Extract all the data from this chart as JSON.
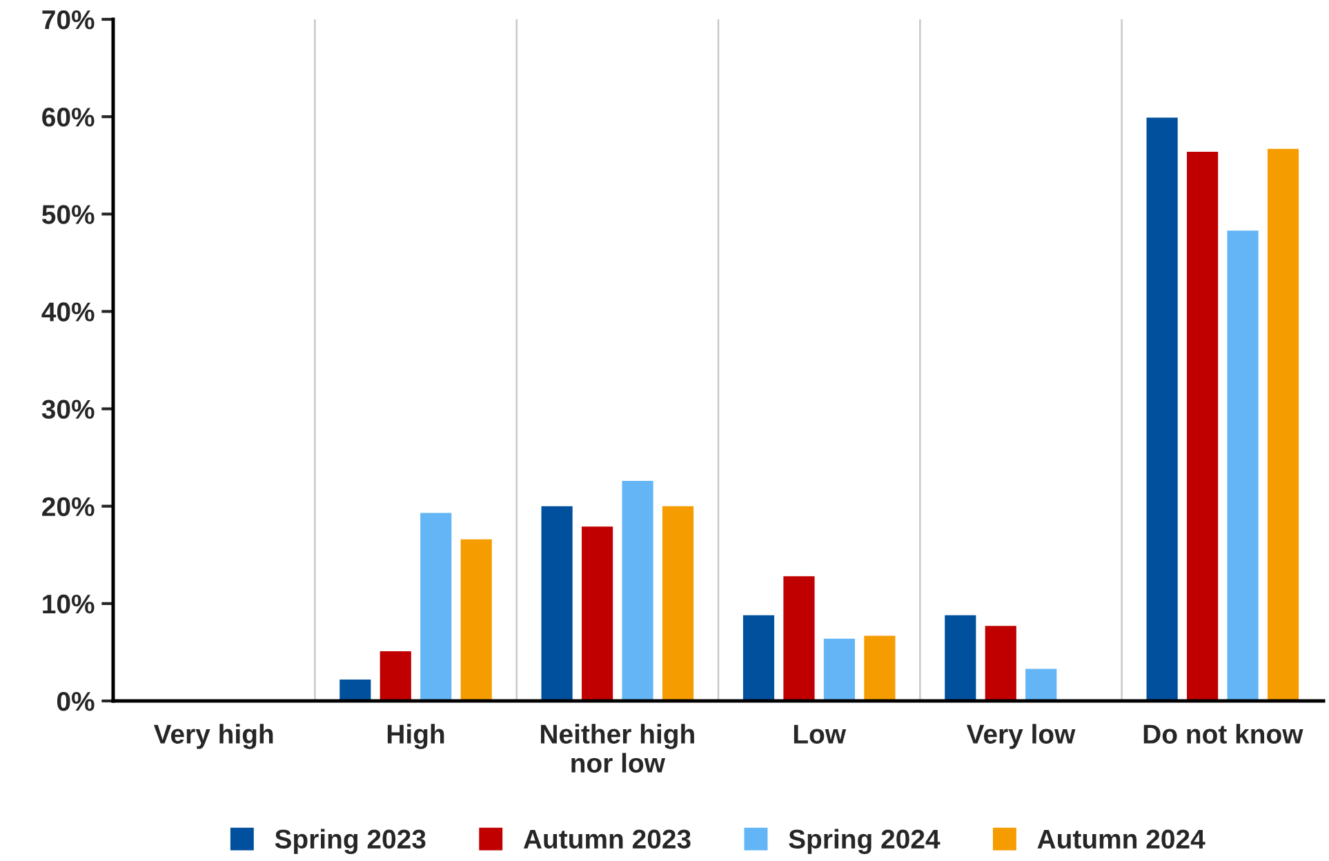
{
  "chart_data": {
    "type": "bar",
    "categories": [
      "Very high",
      "High",
      "Neither high\nnor low",
      "Low",
      "Very low",
      "Do not know"
    ],
    "series": [
      {
        "name": "Spring 2023",
        "color": "#00509e",
        "values": [
          null,
          2.3,
          20.1,
          8.9,
          8.9,
          60.0
        ]
      },
      {
        "name": "Autumn 2023",
        "color": "#c00000",
        "values": [
          null,
          5.2,
          18.0,
          12.9,
          7.8,
          56.5
        ]
      },
      {
        "name": "Spring 2024",
        "color": "#63b5f5",
        "values": [
          null,
          19.4,
          22.7,
          6.5,
          3.4,
          48.4
        ]
      },
      {
        "name": "Autumn 2024",
        "color": "#f59c00",
        "values": [
          null,
          16.7,
          20.1,
          6.8,
          null,
          56.8
        ]
      }
    ],
    "ylim": [
      0,
      70
    ],
    "yticks": [
      {
        "value": 0,
        "label": "0%"
      },
      {
        "value": 10,
        "label": "10%"
      },
      {
        "value": 20,
        "label": "20%"
      },
      {
        "value": 30,
        "label": "30%"
      },
      {
        "value": 40,
        "label": "40%"
      },
      {
        "value": 50,
        "label": "50%"
      },
      {
        "value": 60,
        "label": "60%"
      },
      {
        "value": 70,
        "label": "70%"
      }
    ],
    "grid": "x",
    "legend": "bottom"
  }
}
